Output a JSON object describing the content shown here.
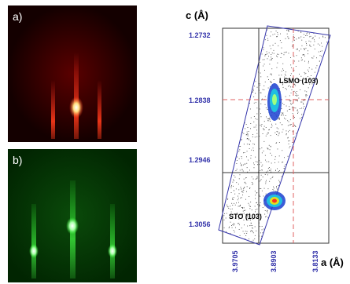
{
  "panels": {
    "a": {
      "label": "a)",
      "colors": {
        "bg": "#1a0000",
        "streak": "#ff2a1a",
        "spot": "#ffffff"
      }
    },
    "b": {
      "label": "b)",
      "colors": {
        "bg": "#002000",
        "streak": "#33ff33",
        "spot": "#ffffff"
      }
    }
  },
  "map": {
    "yaxis_title": "c (Å)",
    "xaxis_title": "a (Å)",
    "y_ticks": [
      "1.2732",
      "1.2838",
      "1.2946",
      "1.3056"
    ],
    "x_ticks": [
      "3.9705",
      "3.8903",
      "3.8133"
    ],
    "peaks": [
      {
        "label": "LSMO (103)"
      },
      {
        "label": "STO (103)"
      }
    ],
    "colors": {
      "tick_text": "#3333aa",
      "box": "#3333aa",
      "dashed": "#e06060"
    }
  }
}
